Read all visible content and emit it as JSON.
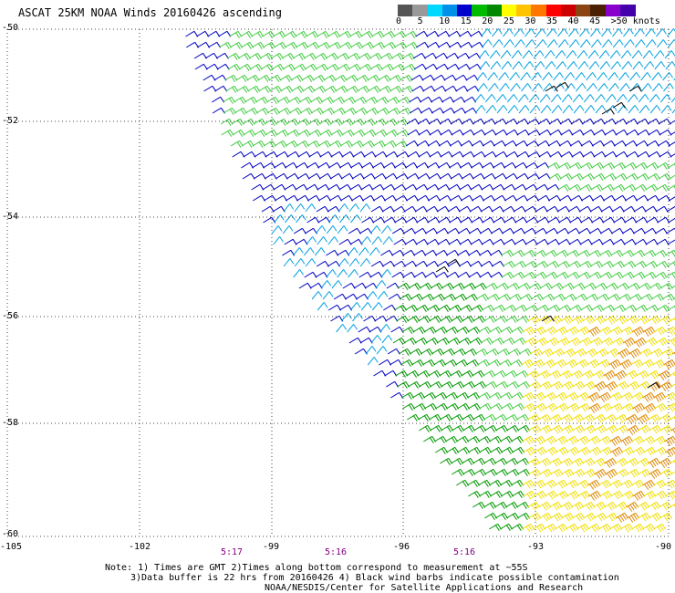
{
  "title": "ASCAT 25KM NOAA Winds 20160426 ascending",
  "lat_labels": [
    "-50",
    "-52",
    "-54",
    "-56",
    "-58",
    "-60"
  ],
  "lon_labels": [
    "-105",
    "-102",
    "-99",
    "-96",
    "-93",
    "-90"
  ],
  "time_labels": [
    "5:17",
    "5:16",
    "5:16"
  ],
  "notes": {
    "line1": "Note: 1) Times are GMT 2)Times along bottom correspond to measurement at ~55S",
    "line2": "3)Data buffer is 22 hrs from 20160426 4) Black wind barbs indicate possible contamination",
    "line3": "NOAA/NESDIS/Center for Satellite Applications and Research"
  },
  "legend": {
    "labels": [
      "0",
      "5",
      "10",
      "15",
      "20",
      "25",
      "30",
      "35",
      "40",
      "45",
      ">50 knots"
    ],
    "colors": [
      "#555555",
      "#999999",
      "#00d8ff",
      "#0090e8",
      "#0000cc",
      "#00bb00",
      "#008800",
      "#ffff00",
      "#ffc400",
      "#ff7700",
      "#ff0000",
      "#cc0000",
      "#8b4513",
      "#4a2000",
      "#8800cc",
      "#4400aa"
    ]
  },
  "map": {
    "lat_range": [
      -60,
      -50
    ],
    "lon_range": [
      -105,
      -90
    ],
    "grid": "dotted",
    "barb_colors": {
      "calm_blue": "#00a0e0",
      "blue": "#0000c0",
      "light_green": "#44cc44",
      "green": "#009900",
      "yellow": "#f0e000",
      "orange": "#e08800",
      "contaminated": "#000000"
    }
  }
}
